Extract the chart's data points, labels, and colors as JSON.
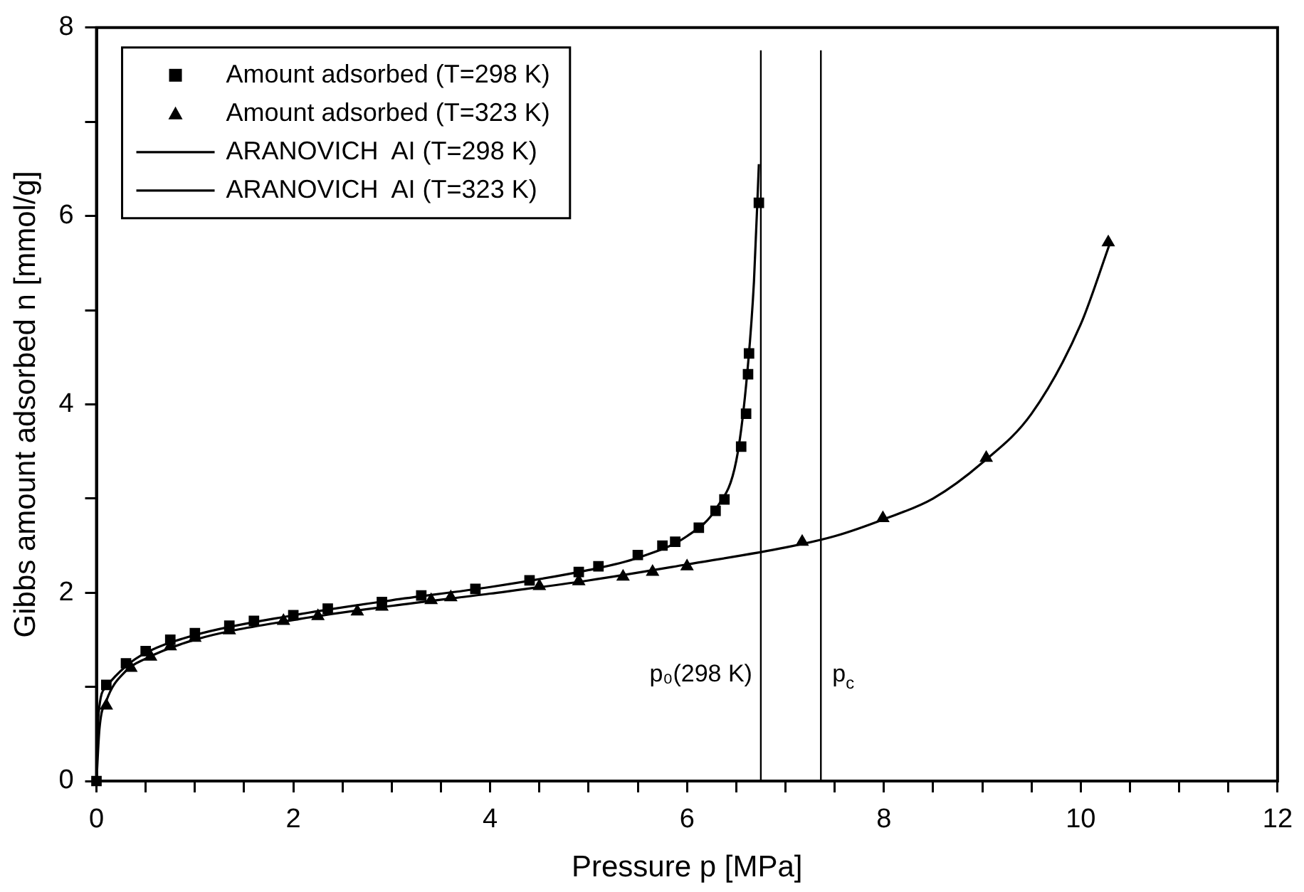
{
  "chart_data": {
    "type": "scatter",
    "xlabel": "Pressure p [MPa]",
    "ylabel": "Gibbs amount adsorbed n [mmol/g]",
    "xlim": [
      0,
      12
    ],
    "xticks": [
      0,
      {
        "value": 0.5,
        "label": null
      },
      {
        "value": 1,
        "label": null
      },
      {
        "value": 1.5,
        "label": null
      },
      2,
      {
        "value": 2.5,
        "label": null
      },
      {
        "value": 3,
        "label": null
      },
      {
        "value": 3.5,
        "label": null
      },
      4,
      {
        "value": 4.5,
        "label": null
      },
      {
        "value": 5,
        "label": null
      },
      {
        "value": 5.5,
        "label": null
      },
      6,
      {
        "value": 6.5,
        "label": null
      },
      {
        "value": 7,
        "label": null
      },
      {
        "value": 7.5,
        "label": null
      },
      8,
      {
        "value": 8.5,
        "label": null
      },
      {
        "value": 9,
        "label": null
      },
      {
        "value": 9.5,
        "label": null
      },
      10,
      {
        "value": 10.5,
        "label": null
      },
      {
        "value": 11,
        "label": null
      },
      {
        "value": 11.5,
        "label": null
      },
      12
    ],
    "ylim": [
      0,
      8
    ],
    "yticks": [
      0,
      {
        "value": 1,
        "label": null
      },
      2,
      {
        "value": 3,
        "label": null
      },
      4,
      {
        "value": 5,
        "label": null
      },
      6,
      {
        "value": 7,
        "label": null
      },
      8
    ],
    "grid": false,
    "legend": "top left",
    "series": [
      {
        "name": "Amount adsorbed (T=298 K)",
        "marker": "square",
        "color": "#000000",
        "x": [
          0,
          0.1,
          0.3,
          0.5,
          0.75,
          1.0,
          1.35,
          1.6,
          2.0,
          2.35,
          2.9,
          3.3,
          3.85,
          4.4,
          4.9,
          5.1,
          5.5,
          5.75,
          5.88,
          6.12,
          6.29,
          6.38,
          6.55,
          6.6,
          6.62,
          6.63,
          6.73
        ],
        "values": [
          0,
          1.02,
          1.25,
          1.38,
          1.5,
          1.57,
          1.65,
          1.7,
          1.76,
          1.83,
          1.9,
          1.97,
          2.04,
          2.13,
          2.22,
          2.28,
          2.4,
          2.5,
          2.54,
          2.69,
          2.87,
          2.99,
          3.55,
          3.9,
          4.32,
          4.54,
          6.14
        ]
      },
      {
        "name": "Amount adsorbed (T=323 K)",
        "marker": "triangle",
        "color": "#000000",
        "x": [
          0.1,
          0.35,
          0.55,
          0.75,
          1.0,
          1.35,
          1.9,
          2.25,
          2.65,
          2.9,
          3.4,
          3.6,
          4.5,
          4.9,
          5.35,
          5.65,
          6.0,
          7.17,
          7.99,
          9.04,
          10.28
        ],
        "values": [
          0.8,
          1.2,
          1.32,
          1.43,
          1.52,
          1.6,
          1.7,
          1.75,
          1.8,
          1.85,
          1.92,
          1.95,
          2.07,
          2.12,
          2.17,
          2.22,
          2.28,
          2.54,
          2.79,
          3.43,
          5.72
        ]
      },
      {
        "name": "ARANOVICH  AI (T=298 K)",
        "type": "line",
        "marker": "none",
        "color": "#000000",
        "x": [
          0,
          0.02,
          0.1,
          0.3,
          0.5,
          1,
          2,
          3,
          4,
          5,
          5.5,
          6,
          6.3,
          6.5,
          6.6,
          6.68,
          6.73
        ],
        "values": [
          0,
          0.7,
          1.0,
          1.22,
          1.36,
          1.55,
          1.76,
          1.92,
          2.06,
          2.24,
          2.37,
          2.6,
          2.9,
          3.4,
          4.2,
          5.3,
          6.55
        ]
      },
      {
        "name": "ARANOVICH  AI (T=323 K)",
        "type": "line",
        "marker": "none",
        "color": "#000000",
        "x": [
          0,
          0.03,
          0.1,
          0.3,
          0.5,
          1,
          2,
          3,
          4,
          5,
          6,
          7,
          7.5,
          8,
          8.5,
          9,
          9.5,
          10,
          10.3
        ],
        "values": [
          0,
          0.55,
          0.85,
          1.17,
          1.3,
          1.5,
          1.71,
          1.86,
          1.99,
          2.13,
          2.3,
          2.48,
          2.6,
          2.78,
          3.0,
          3.38,
          3.9,
          4.85,
          5.72
        ]
      }
    ],
    "ref_lines": [
      {
        "axis": "x",
        "value": 6.75,
        "label": "p₀(298 K)",
        "color": "#000000"
      },
      {
        "axis": "x",
        "value": 7.36,
        "label": "p$_{c}$",
        "color": "#000000"
      }
    ]
  }
}
